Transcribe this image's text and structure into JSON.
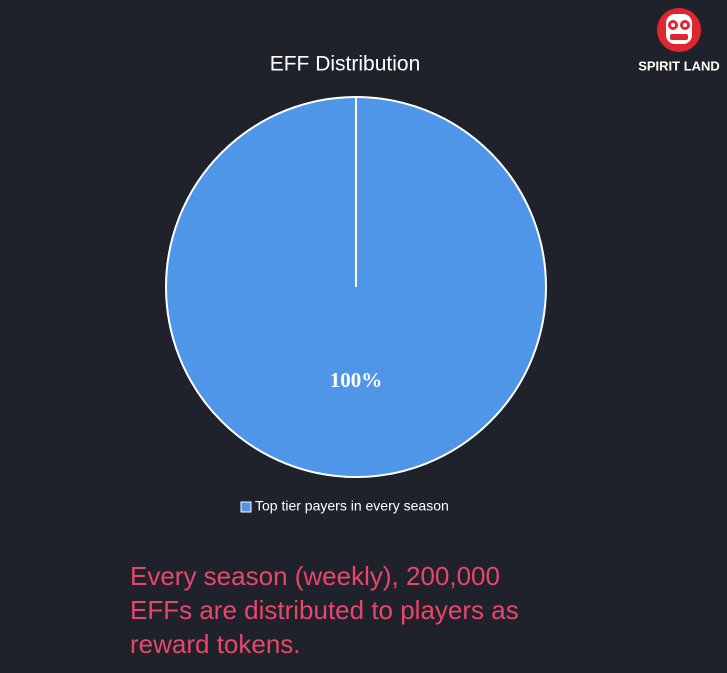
{
  "chart_data": {
    "type": "pie",
    "title": "EFF Distribution",
    "categories": [
      "Top tier payers in every season"
    ],
    "values": [
      100
    ],
    "value_labels": [
      "100%"
    ],
    "colors": [
      "#4f95e8"
    ],
    "legend": "bottom"
  },
  "logo": {
    "text": "SPIRIT LAND"
  },
  "caption": {
    "lines": [
      "Every season (weekly), 200,000",
      "EFFs are distributed to players as",
      "reward tokens."
    ]
  }
}
